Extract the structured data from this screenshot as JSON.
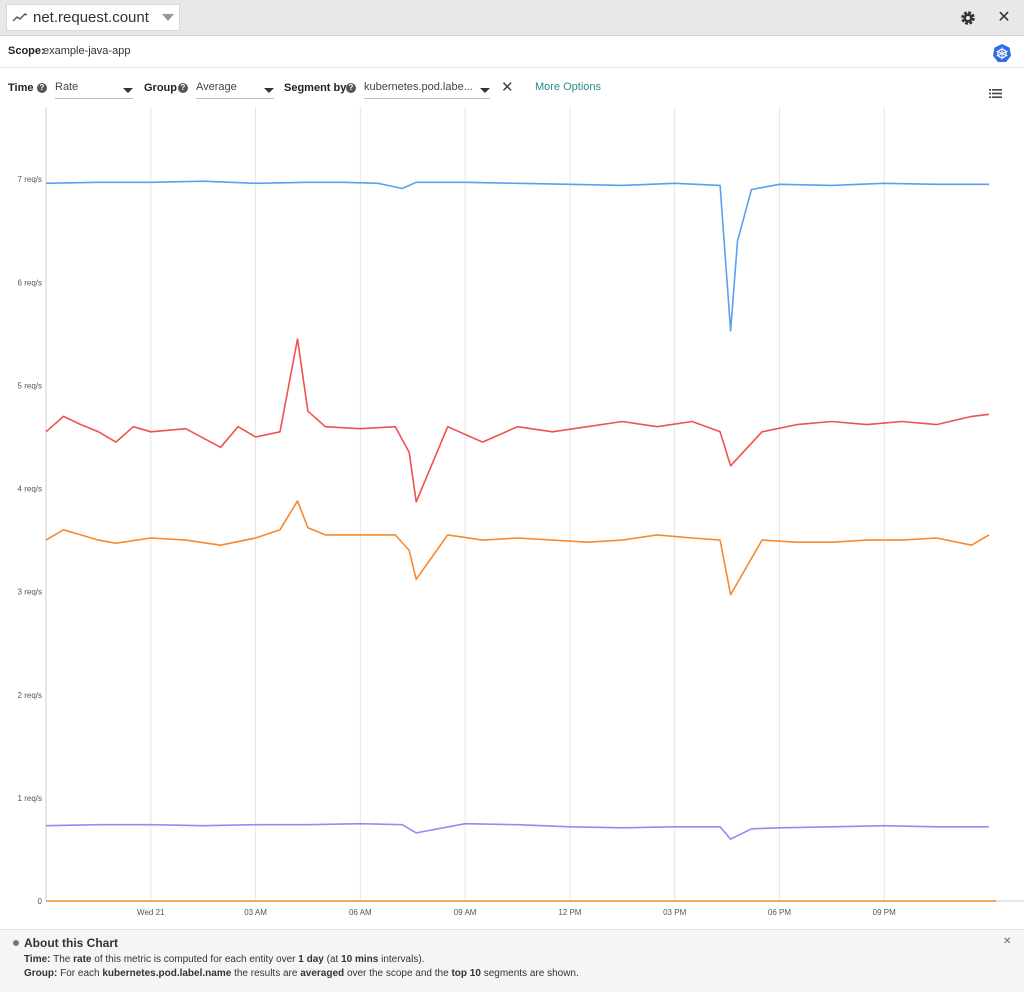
{
  "header": {
    "metric_name": "net.request.count"
  },
  "scope": {
    "label": "Scope:",
    "value": "example-java-app"
  },
  "controls": {
    "time_label": "Time",
    "time_value": "Rate",
    "group_label": "Group",
    "group_value": "Average",
    "segment_label": "Segment by",
    "segment_value": "kubernetes.pod.labe...",
    "more_options": "More Options"
  },
  "about": {
    "title": "About this Chart",
    "time_label": "Time:",
    "time_pre": "The",
    "time_b1": "rate",
    "time_mid": "of this metric is computed for each entity over",
    "time_b2": "1 day",
    "time_mid2": "(at",
    "time_b3": "10 mins",
    "time_post": "intervals).",
    "group_label": "Group:",
    "group_pre": "For each",
    "group_b1": "kubernetes.pod.label.name",
    "group_mid": "the results are",
    "group_b2": "averaged",
    "group_mid2": "over the scope and the",
    "group_b3": "top 10",
    "group_post": "segments are shown."
  },
  "colors": {
    "blue": "#5b9ff0",
    "red": "#f0524d",
    "orange": "#f7892e",
    "purple": "#9b87f5"
  },
  "chart_data": {
    "type": "line",
    "y_unit": "req/s",
    "ylim": [
      0,
      7.7
    ],
    "y_ticks": [
      0,
      1,
      2,
      3,
      4,
      5,
      6,
      7
    ],
    "y_tick_labels": [
      "0",
      "1 req/s",
      "2 req/s",
      "3 req/s",
      "4 req/s",
      "5 req/s",
      "6 req/s",
      "7 req/s"
    ],
    "xlim": [
      -3,
      24.2
    ],
    "x_ticks": [
      0,
      3,
      6,
      9,
      12,
      15,
      18,
      21
    ],
    "x_tick_labels": [
      "Wed 21",
      "03 AM",
      "06 AM",
      "09 AM",
      "12 PM",
      "03 PM",
      "06 PM",
      "09 PM"
    ],
    "grid": "vertical",
    "series": [
      {
        "color": "#5b9ff0",
        "x": [
          -3,
          -1.5,
          0,
          1.5,
          3,
          4.5,
          5.5,
          6.5,
          7.2,
          7.6,
          9,
          10.5,
          12,
          13.5,
          15,
          16.3,
          16.6,
          16.8,
          17.2,
          18,
          19.5,
          21,
          22.5,
          24
        ],
        "y": [
          6.96,
          6.97,
          6.97,
          6.98,
          6.96,
          6.97,
          6.97,
          6.96,
          6.91,
          6.97,
          6.97,
          6.96,
          6.95,
          6.94,
          6.96,
          6.94,
          5.53,
          6.4,
          6.9,
          6.95,
          6.94,
          6.96,
          6.95,
          6.95
        ]
      },
      {
        "color": "#f0524d",
        "x": [
          -3,
          -2.5,
          -2,
          -1.5,
          -1,
          -0.5,
          0,
          1,
          2,
          2.5,
          3,
          3.7,
          4.2,
          4.5,
          5,
          6,
          7,
          7.4,
          7.6,
          8.5,
          9.5,
          10.5,
          11.5,
          12.5,
          13.5,
          14.5,
          15.5,
          16.3,
          16.6,
          17.5,
          18.5,
          19.5,
          20.5,
          21.5,
          22.5,
          23.5,
          24
        ],
        "y": [
          4.55,
          4.7,
          4.62,
          4.55,
          4.45,
          4.6,
          4.55,
          4.58,
          4.4,
          4.6,
          4.5,
          4.55,
          5.45,
          4.75,
          4.6,
          4.58,
          4.6,
          4.35,
          3.87,
          4.6,
          4.45,
          4.6,
          4.55,
          4.6,
          4.65,
          4.6,
          4.65,
          4.55,
          4.22,
          4.55,
          4.62,
          4.65,
          4.62,
          4.65,
          4.62,
          4.7,
          4.72
        ]
      },
      {
        "color": "#f7892e",
        "x": [
          -3,
          -2.5,
          -2,
          -1.5,
          -1,
          0,
          1,
          2,
          3,
          3.7,
          4.2,
          4.5,
          5,
          6,
          7,
          7.4,
          7.6,
          8.5,
          9.5,
          10.5,
          11.5,
          12.5,
          13.5,
          14.5,
          15.5,
          16.3,
          16.6,
          17.5,
          18.5,
          19.5,
          20.5,
          21.5,
          22.5,
          23.5,
          24
        ],
        "y": [
          3.5,
          3.6,
          3.55,
          3.5,
          3.47,
          3.52,
          3.5,
          3.45,
          3.52,
          3.6,
          3.88,
          3.62,
          3.55,
          3.55,
          3.55,
          3.4,
          3.12,
          3.55,
          3.5,
          3.52,
          3.5,
          3.48,
          3.5,
          3.55,
          3.52,
          3.5,
          2.97,
          3.5,
          3.48,
          3.48,
          3.5,
          3.5,
          3.52,
          3.45,
          3.55
        ]
      },
      {
        "color": "#9b87f5",
        "x": [
          -3,
          -1.5,
          0,
          1.5,
          3,
          4.5,
          6,
          7.2,
          7.6,
          9,
          10.5,
          12,
          13.5,
          15,
          16.3,
          16.6,
          17.2,
          18,
          19.5,
          21,
          22.5,
          24
        ],
        "y": [
          0.73,
          0.74,
          0.74,
          0.73,
          0.74,
          0.74,
          0.75,
          0.74,
          0.66,
          0.75,
          0.74,
          0.72,
          0.71,
          0.72,
          0.72,
          0.6,
          0.7,
          0.71,
          0.72,
          0.73,
          0.72,
          0.72
        ]
      },
      {
        "color": "#f7892e",
        "x": [
          -3,
          24.2
        ],
        "y": [
          0,
          0
        ]
      }
    ]
  }
}
